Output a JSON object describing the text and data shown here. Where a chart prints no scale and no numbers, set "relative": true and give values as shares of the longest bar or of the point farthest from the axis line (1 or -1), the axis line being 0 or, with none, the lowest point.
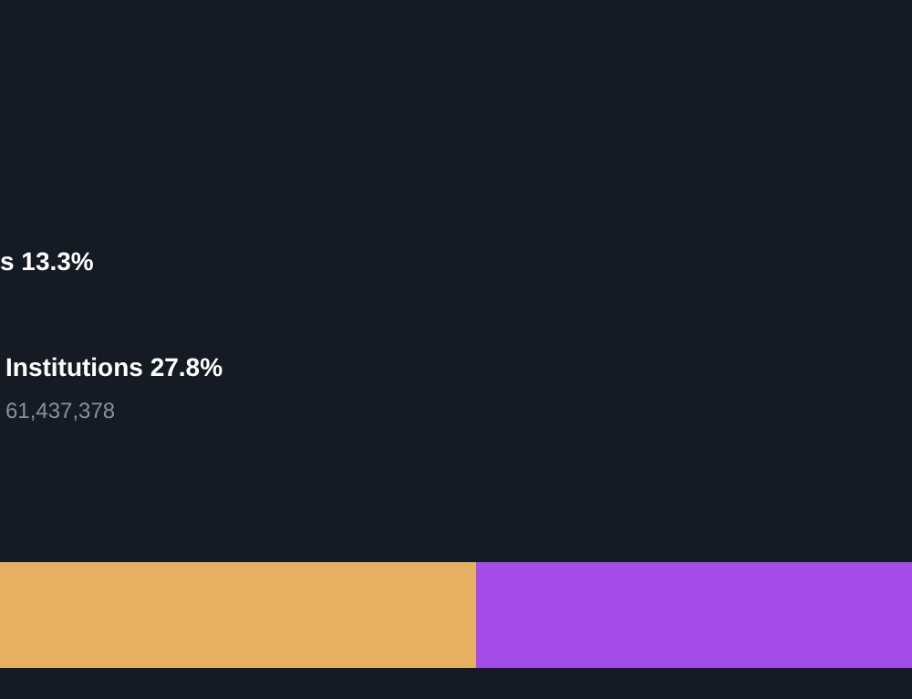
{
  "chart_data": {
    "type": "bar",
    "orientation": "horizontal",
    "stacked": true,
    "relative": true,
    "categories": [
      null
    ],
    "series": [
      {
        "color": "#e5b062",
        "values": [
          0.522
        ]
      },
      {
        "color": "#a54ce8",
        "values": [
          0.478
        ]
      }
    ],
    "annotations": [
      "s 13.3%",
      "Institutions 27.8%",
      "61,437,378"
    ],
    "tick_labels": false
  }
}
